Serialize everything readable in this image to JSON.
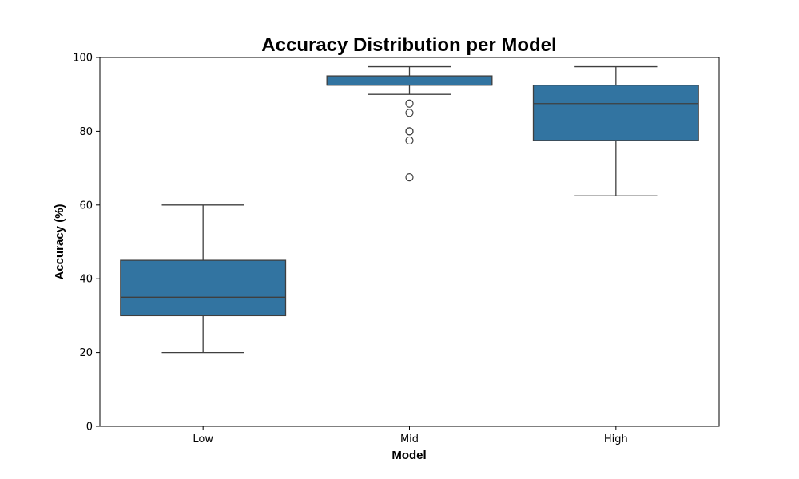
{
  "chart_data": {
    "type": "box",
    "title": "Accuracy Distribution per Model",
    "xlabel": "Model",
    "ylabel": "Accuracy (%)",
    "categories": [
      "Low",
      "Mid",
      "High"
    ],
    "ylim": [
      0,
      100
    ],
    "yticks": [
      "0",
      "20",
      "40",
      "60",
      "80",
      "100"
    ],
    "grid": false,
    "legend": false,
    "box_color": "#3274a1",
    "line_color": "#3f3f3f",
    "boxes": [
      {
        "category": "Low",
        "whisker_low": 20,
        "q1": 30,
        "median": 35,
        "q3": 45,
        "whisker_high": 60,
        "outliers": []
      },
      {
        "category": "Mid",
        "whisker_low": 90,
        "q1": 92.5,
        "median": 92.5,
        "q3": 95,
        "whisker_high": 97.5,
        "outliers": [
          87.5,
          85,
          80,
          80,
          77.5,
          67.5
        ]
      },
      {
        "category": "High",
        "whisker_low": 62.5,
        "q1": 77.5,
        "median": 87.5,
        "q3": 92.5,
        "whisker_high": 97.5,
        "outliers": []
      }
    ]
  }
}
